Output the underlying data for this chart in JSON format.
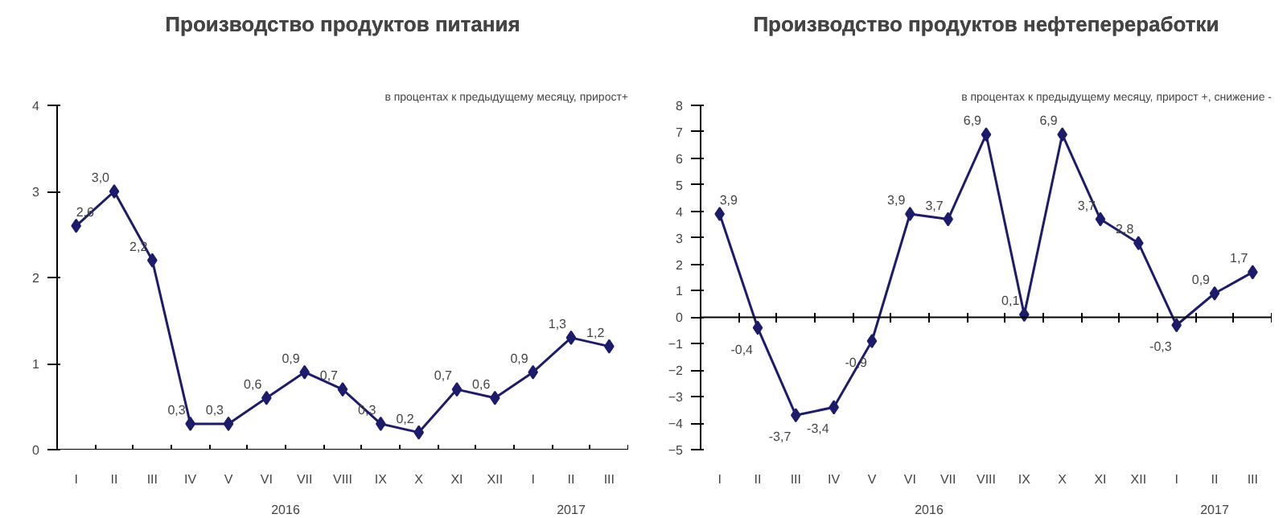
{
  "chart_data": [
    {
      "type": "line",
      "title": "Производство продуктов питания",
      "categories": [
        "I",
        "II",
        "III",
        "IV",
        "V",
        "VI",
        "VII",
        "VIII",
        "IX",
        "X",
        "XI",
        "XII",
        "I",
        "II",
        "III"
      ],
      "series": [
        {
          "color": "#1c1c6b",
          "values": [
            2.6,
            3.0,
            2.2,
            0.3,
            0.3,
            0.6,
            0.9,
            0.7,
            0.3,
            0.2,
            0.7,
            0.6,
            0.9,
            1.3,
            1.2
          ],
          "value_labels": [
            "2,6",
            "3,0",
            "2,2",
            "0,3",
            "0,3",
            "0,6",
            "0,9",
            "0,7",
            "0,3",
            "0,2",
            "0,7",
            "0,6",
            "0,9",
            "1,3",
            "1,2"
          ]
        }
      ],
      "ylim": [
        0,
        4
      ],
      "yticks": [
        0,
        1,
        2,
        3,
        4
      ],
      "marker": "diamond",
      "annotations": [
        "в процентах к предыдущему месяцу, прирост+",
        "2016",
        "2017"
      ]
    },
    {
      "type": "line",
      "title": "Производство продуктов нефтепереработки",
      "categories": [
        "I",
        "II",
        "III",
        "IV",
        "V",
        "VI",
        "VII",
        "VIII",
        "IX",
        "X",
        "XI",
        "XII",
        "I",
        "II",
        "III"
      ],
      "series": [
        {
          "color": "#1c1c6b",
          "values": [
            3.9,
            -0.4,
            -3.7,
            -3.4,
            -0.9,
            3.9,
            3.7,
            6.9,
            0.1,
            6.9,
            3.7,
            2.8,
            -0.3,
            0.9,
            1.7
          ],
          "value_labels": [
            "3,9",
            "-0,4",
            "-3,7",
            "-3,4",
            "-0,9",
            "3,9",
            "3,7",
            "6,9",
            "0,1",
            "6,9",
            "3,7",
            "2,8",
            "-0,3",
            "0,9",
            "1,7"
          ]
        }
      ],
      "ylim": [
        -5,
        8
      ],
      "yticks": [
        -5,
        -4,
        -3,
        -2,
        -1,
        0,
        1,
        2,
        3,
        4,
        5,
        6,
        7,
        8
      ],
      "marker": "diamond",
      "ref_lines": [
        {
          "axis": "y",
          "value": 0
        }
      ],
      "annotations": [
        "в процентах к предыдущему месяцу, прирост +, снижение -",
        "2016",
        "2017"
      ]
    }
  ]
}
